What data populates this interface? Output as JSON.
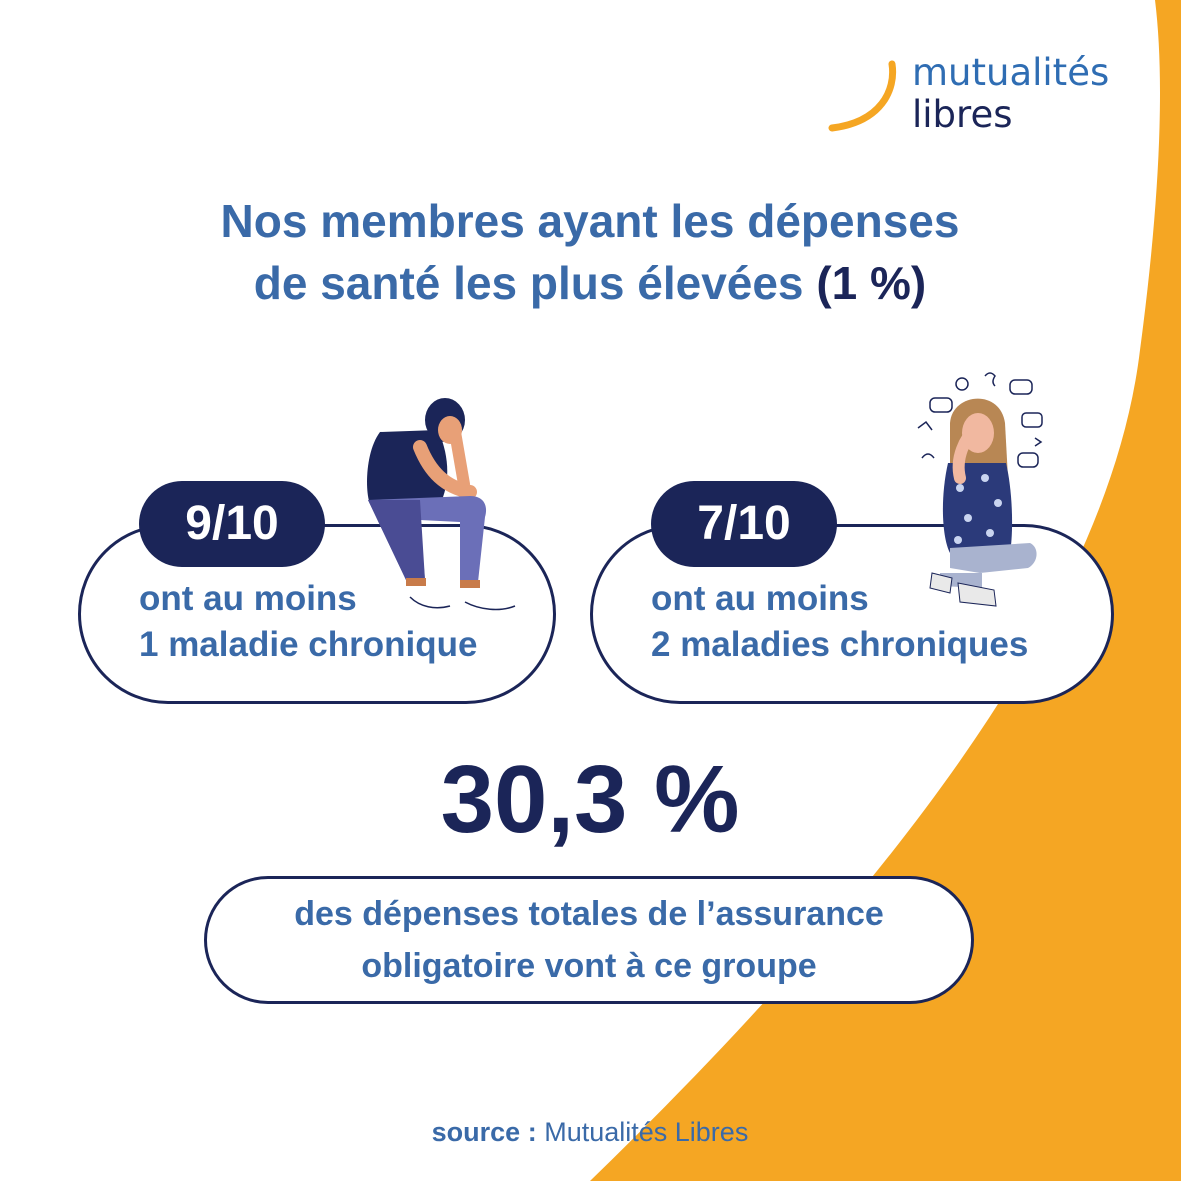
{
  "colors": {
    "navy": "#1b2558",
    "blue": "#3a6aa8",
    "orange": "#f5a623",
    "white": "#ffffff"
  },
  "logo": {
    "line1": "mutualités",
    "line2": "libres",
    "icon": "orange-arc-logo-icon"
  },
  "headline": {
    "line1": "Nos membres ayant les dépenses",
    "line2": "de santé les plus élevées",
    "highlight": "(1 %)"
  },
  "cards": [
    {
      "badge": "9/10",
      "line1": "ont au moins",
      "line2": "1 maladie chronique",
      "illustration": "sitting-man-illustration"
    },
    {
      "badge": "7/10",
      "line1": "ont au moins",
      "line2": "2 maladies chroniques",
      "illustration": "stressed-woman-illustration"
    }
  ],
  "stat": {
    "value": "30,3 %",
    "line1": "des dépenses totales de l’assurance",
    "line2": "obligatoire vont à ce groupe"
  },
  "source": {
    "label": "source :",
    "value": "Mutualités Libres"
  }
}
